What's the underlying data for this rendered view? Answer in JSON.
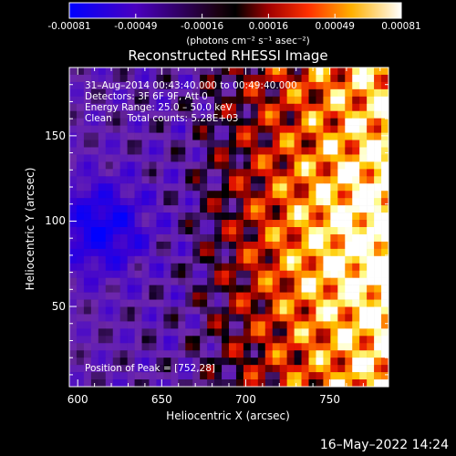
{
  "chart_data": {
    "type": "heatmap",
    "title": "Reconstructed RHESSI Image",
    "xlabel": "Heliocentric X (arcsec)",
    "ylabel": "Heliocentric Y (arcsec)",
    "xlim": [
      595,
      785
    ],
    "ylim": [
      3,
      190
    ],
    "x_ticks": [
      600,
      650,
      700,
      750
    ],
    "y_ticks": [
      50,
      100,
      150
    ],
    "colorbar": {
      "ticks": [
        "-0.00081",
        "-0.00049",
        "-0.00016",
        "0.00016",
        "0.00049",
        "0.00081"
      ],
      "range": [
        -0.00081,
        0.00081
      ],
      "unit": "(photons cm⁻² s⁻¹ asec⁻²)",
      "colormap": [
        "#0000ff",
        "#5000c8",
        "#7030a0",
        "#000000",
        "#900000",
        "#e00000",
        "#ff7000",
        "#ffc000",
        "#ffffa0",
        "#ffffff"
      ]
    },
    "annotations": [
      "31–Aug–2014 00:43:40.000 to 00:49:40.000",
      "Detectors: 3F 6F 9F, Att 0",
      "Energy Range: 25.0 – 50.0 keV",
      "Clean     Total counts: 5.28E+03"
    ],
    "peak_label": "Position of Peak = [752,28]"
  },
  "footer": {
    "date": "16–May–2022 14:24"
  }
}
